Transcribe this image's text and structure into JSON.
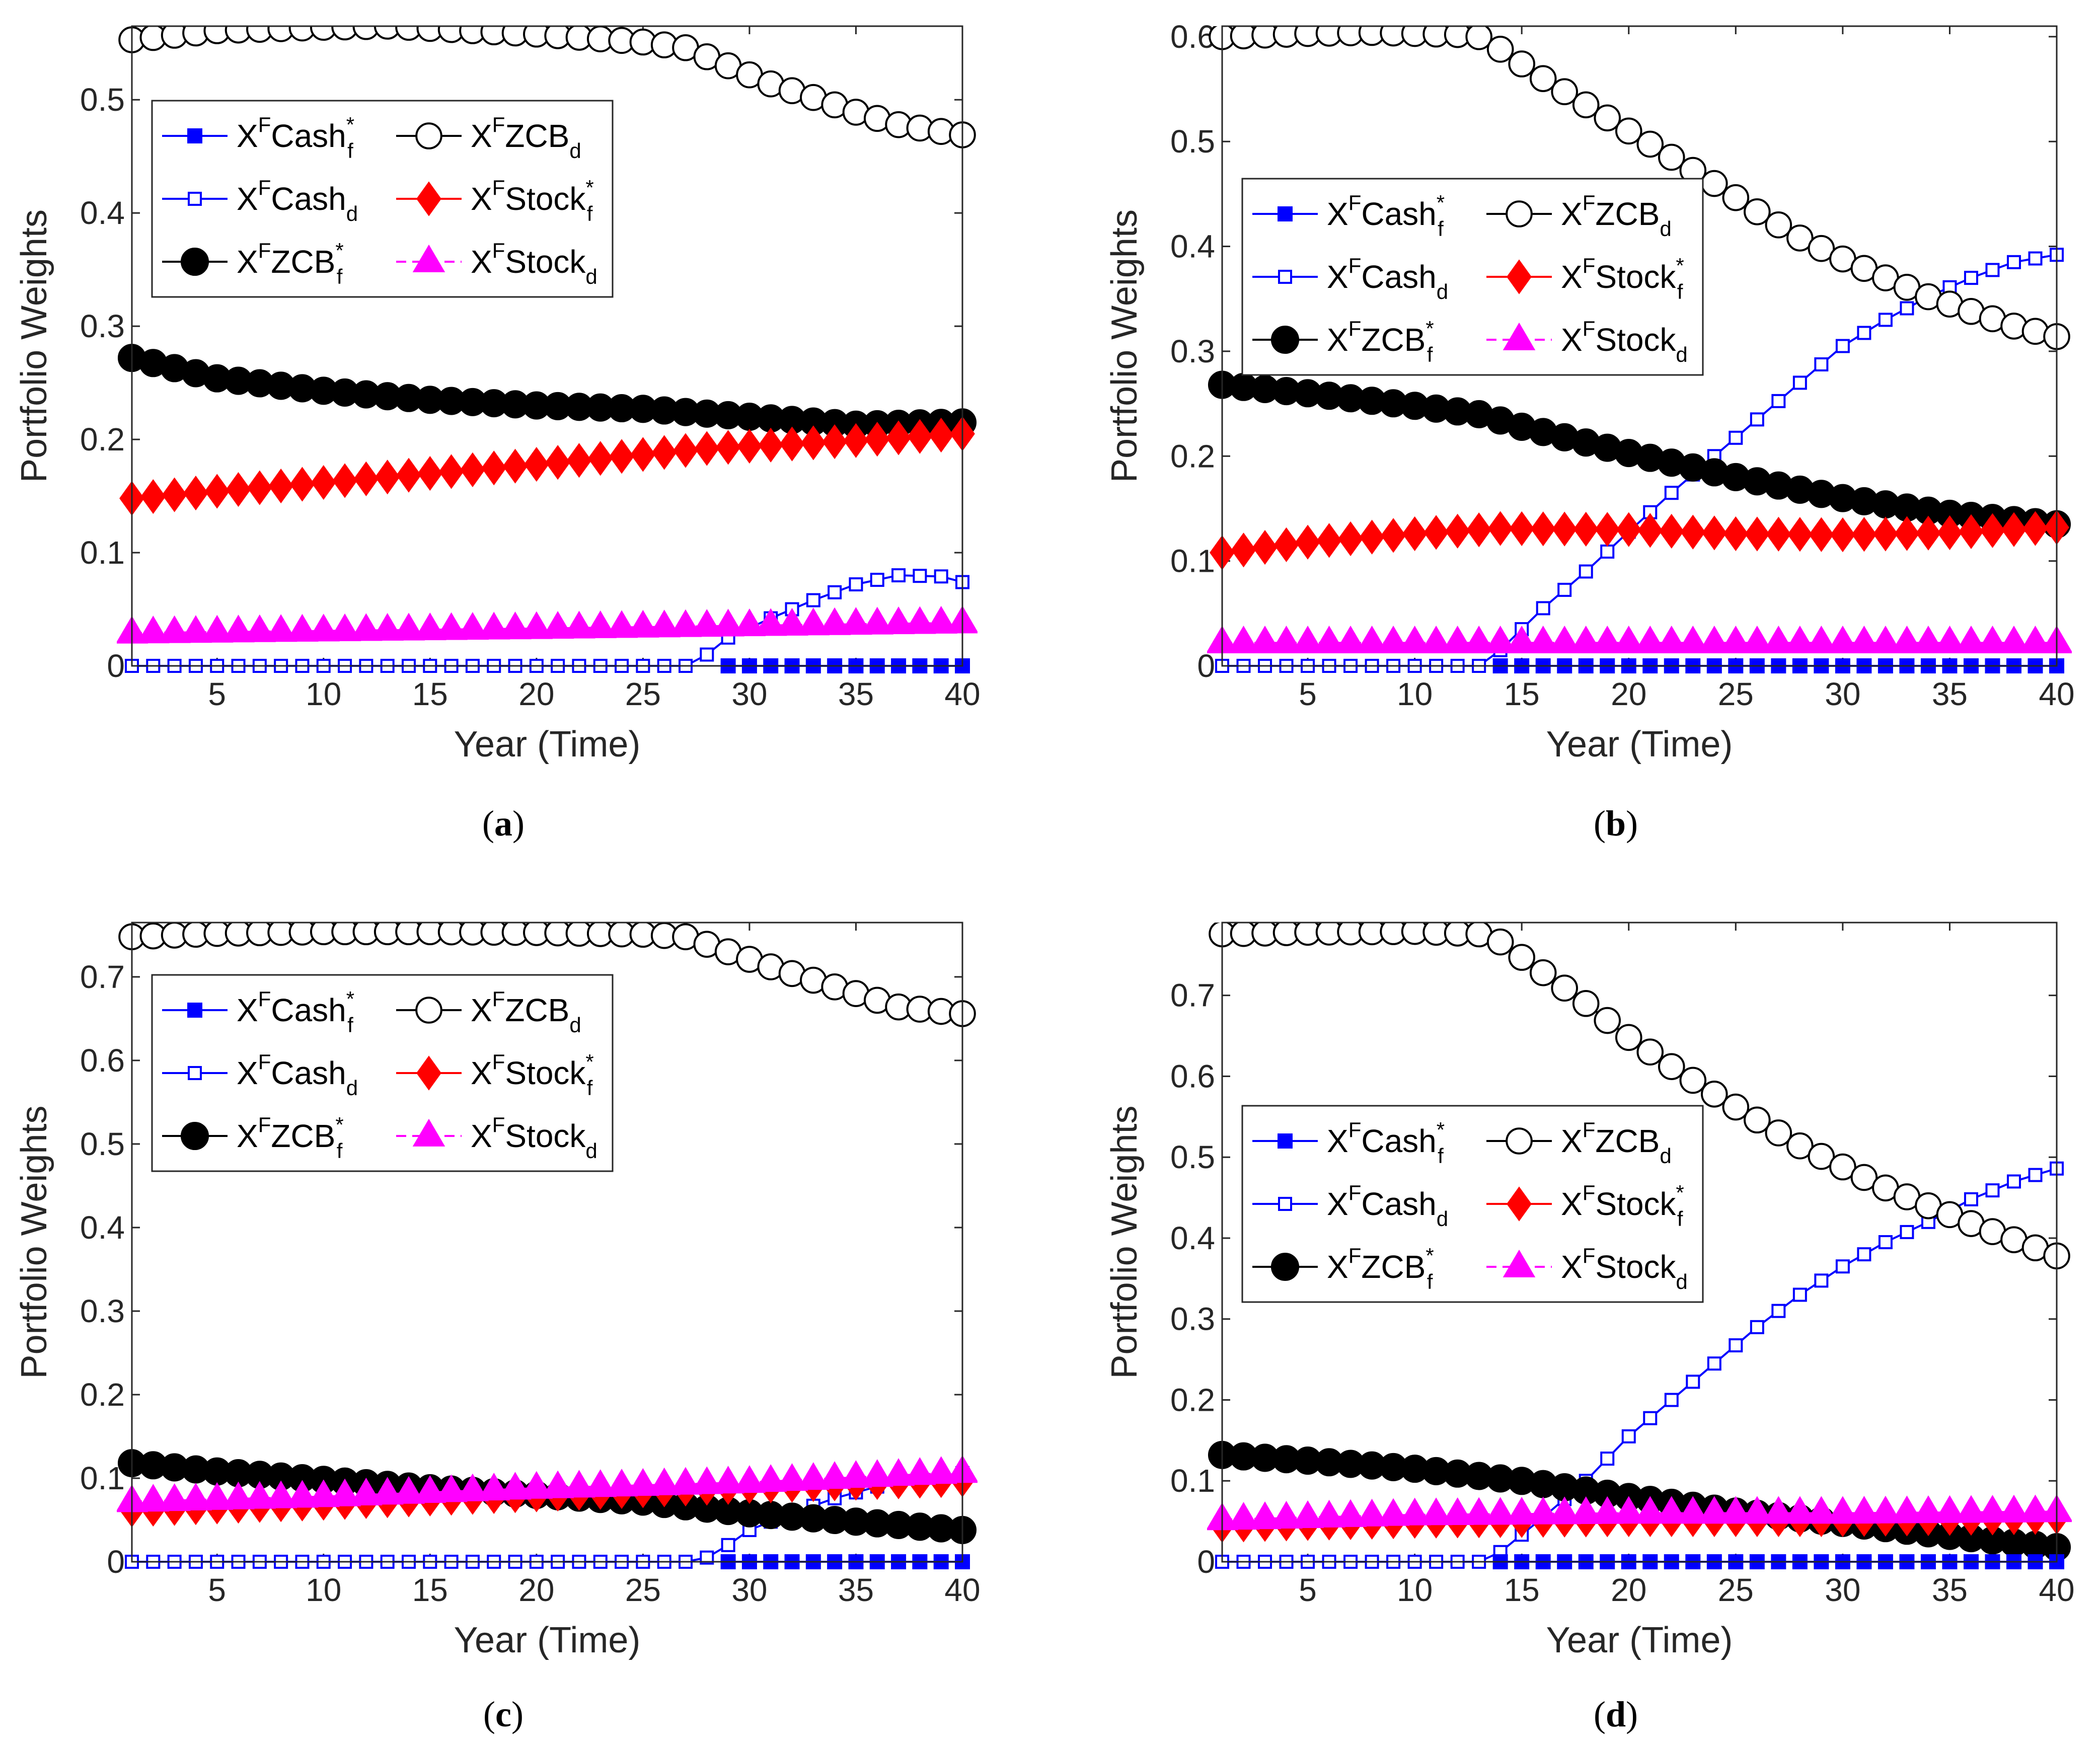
{
  "legend": {
    "entries": [
      {
        "key": "cash_f",
        "base": "X",
        "sup": "F",
        "name": "Cash",
        "sub": "f",
        "star": true,
        "color": "#0000ff",
        "marker": "square-filled",
        "dash": false
      },
      {
        "key": "zcb_d",
        "base": "X",
        "sup": "F",
        "name": "ZCB",
        "sub": "d",
        "star": false,
        "color": "#000000",
        "marker": "circle-open",
        "dash": false
      },
      {
        "key": "cash_d",
        "base": "X",
        "sup": "F",
        "name": "Cash",
        "sub": "d",
        "star": false,
        "color": "#0000ff",
        "marker": "square-open",
        "dash": false
      },
      {
        "key": "stock_f",
        "base": "X",
        "sup": "F",
        "name": "Stock",
        "sub": "f",
        "star": true,
        "color": "#ff0000",
        "marker": "diamond-filled",
        "dash": false
      },
      {
        "key": "zcb_f",
        "base": "X",
        "sup": "F",
        "name": "ZCB",
        "sub": "f",
        "star": true,
        "color": "#000000",
        "marker": "circle-filled",
        "dash": false
      },
      {
        "key": "stock_d",
        "base": "X",
        "sup": "F",
        "name": "Stock",
        "sub": "d",
        "star": false,
        "color": "#ff00ff",
        "marker": "triangle-filled",
        "dash": true
      }
    ]
  },
  "chart_data": [
    {
      "type": "line",
      "panel": "a",
      "caption_open": "(",
      "caption_letter": "a",
      "caption_close": ")",
      "xlabel": "Year (Time)",
      "ylabel": "Portfolio Weights",
      "xlim": [
        1,
        40
      ],
      "ylim": [
        0,
        0.565
      ],
      "xticks": [
        5,
        10,
        15,
        20,
        25,
        30,
        35,
        40
      ],
      "xtick_labels": [
        "5",
        "10",
        "15",
        "20",
        "25",
        "30",
        "35",
        "40"
      ],
      "yticks": [
        0,
        0.1,
        0.2,
        0.3,
        0.4,
        0.5
      ],
      "ytick_labels": [
        "0",
        "0.1",
        "0.2",
        "0.3",
        "0.4",
        "0.5"
      ],
      "legend_position": "upper-left",
      "series": {
        "zcb_d": {
          "anchors": [
            [
              1,
              0.553
            ],
            [
              5,
              0.561
            ],
            [
              10,
              0.564
            ],
            [
              13,
              0.565
            ],
            [
              20,
              0.558
            ],
            [
              25,
              0.551
            ],
            [
              27,
              0.546
            ],
            [
              29,
              0.53
            ],
            [
              31,
              0.514
            ],
            [
              33,
              0.502
            ],
            [
              35,
              0.489
            ],
            [
              37,
              0.478
            ],
            [
              40,
              0.469
            ]
          ]
        },
        "zcb_f": {
          "anchors": [
            [
              1,
              0.272
            ],
            [
              5,
              0.254
            ],
            [
              10,
              0.243
            ],
            [
              15,
              0.235
            ],
            [
              20,
              0.23
            ],
            [
              25,
              0.227
            ],
            [
              30,
              0.22
            ],
            [
              35,
              0.213
            ],
            [
              40,
              0.215
            ]
          ]
        },
        "stock_f": {
          "anchors": [
            [
              1,
              0.148
            ],
            [
              10,
              0.162
            ],
            [
              20,
              0.178
            ],
            [
              28,
              0.192
            ],
            [
              35,
              0.199
            ],
            [
              40,
              0.205
            ]
          ]
        },
        "stock_d": {
          "anchors": [
            [
              1,
              0.029
            ],
            [
              20,
              0.033
            ],
            [
              40,
              0.038
            ]
          ]
        },
        "cash_d": {
          "anchors": [
            [
              1,
              0
            ],
            [
              27,
              0
            ],
            [
              28,
              0.01
            ],
            [
              29,
              0.025
            ],
            [
              31,
              0.042
            ],
            [
              33,
              0.058
            ],
            [
              35,
              0.072
            ],
            [
              37,
              0.08
            ],
            [
              39,
              0.079
            ],
            [
              40,
              0.074
            ]
          ]
        },
        "cash_f": {
          "anchors": [
            [
              1,
              0
            ],
            [
              40,
              0
            ]
          ],
          "start": 29
        }
      }
    },
    {
      "type": "line",
      "panel": "b",
      "caption_open": "(",
      "caption_letter": "b",
      "caption_close": ")",
      "xlabel": "Year (Time)",
      "ylabel": "Portfolio Weights",
      "xlim": [
        1,
        40
      ],
      "ylim": [
        0,
        0.61
      ],
      "xticks": [
        5,
        10,
        15,
        20,
        25,
        30,
        35,
        40
      ],
      "xtick_labels": [
        "5",
        "10",
        "15",
        "20",
        "25",
        "30",
        "35",
        "40"
      ],
      "yticks": [
        0,
        0.1,
        0.2,
        0.3,
        0.4,
        0.5,
        0.6
      ],
      "ytick_labels": [
        "0",
        "0.1",
        "0.2",
        "0.3",
        "0.4",
        "0.5",
        "0.6"
      ],
      "legend_position": "middle-left",
      "series": {
        "zcb_d": {
          "anchors": [
            [
              1,
              0.6
            ],
            [
              5,
              0.603
            ],
            [
              8,
              0.604
            ],
            [
              12,
              0.602
            ],
            [
              13,
              0.6
            ],
            [
              14,
              0.588
            ],
            [
              16,
              0.56
            ],
            [
              18,
              0.535
            ],
            [
              20,
              0.51
            ],
            [
              22,
              0.485
            ],
            [
              24,
              0.46
            ],
            [
              26,
              0.433
            ],
            [
              28,
              0.408
            ],
            [
              30,
              0.388
            ],
            [
              32,
              0.37
            ],
            [
              34,
              0.352
            ],
            [
              36,
              0.338
            ],
            [
              38,
              0.324
            ],
            [
              40,
              0.314
            ]
          ]
        },
        "zcb_f": {
          "anchors": [
            [
              1,
              0.268
            ],
            [
              5,
              0.26
            ],
            [
              10,
              0.248
            ],
            [
              13,
              0.24
            ],
            [
              15,
              0.228
            ],
            [
              20,
              0.203
            ],
            [
              25,
              0.18
            ],
            [
              30,
              0.16
            ],
            [
              35,
              0.145
            ],
            [
              40,
              0.135
            ]
          ]
        },
        "stock_f": {
          "anchors": [
            [
              1,
              0.108
            ],
            [
              5,
              0.118
            ],
            [
              10,
              0.126
            ],
            [
              14,
              0.131
            ],
            [
              20,
              0.13
            ],
            [
              25,
              0.126
            ],
            [
              30,
              0.125
            ],
            [
              35,
              0.127
            ],
            [
              40,
              0.132
            ]
          ]
        },
        "stock_d": {
          "anchors": [
            [
              1,
              0.022
            ],
            [
              40,
              0.022
            ]
          ]
        },
        "cash_d": {
          "anchors": [
            [
              1,
              0
            ],
            [
              13,
              0
            ],
            [
              14,
              0.015
            ],
            [
              16,
              0.055
            ],
            [
              18,
              0.09
            ],
            [
              20,
              0.128
            ],
            [
              22,
              0.165
            ],
            [
              24,
              0.2
            ],
            [
              26,
              0.235
            ],
            [
              28,
              0.27
            ],
            [
              30,
              0.305
            ],
            [
              32,
              0.33
            ],
            [
              34,
              0.352
            ],
            [
              36,
              0.37
            ],
            [
              38,
              0.385
            ],
            [
              40,
              0.392
            ]
          ]
        },
        "cash_f": {
          "anchors": [
            [
              1,
              0
            ],
            [
              40,
              0
            ]
          ],
          "start": 14
        }
      }
    },
    {
      "type": "line",
      "panel": "c",
      "caption_open": "(",
      "caption_letter": "c",
      "caption_close": ")",
      "xlabel": "Year (Time)",
      "ylabel": "Portfolio Weights",
      "xlim": [
        1,
        40
      ],
      "ylim": [
        0,
        0.765
      ],
      "xticks": [
        5,
        10,
        15,
        20,
        25,
        30,
        35,
        40
      ],
      "xtick_labels": [
        "5",
        "10",
        "15",
        "20",
        "25",
        "30",
        "35",
        "40"
      ],
      "yticks": [
        0,
        0.1,
        0.2,
        0.3,
        0.4,
        0.5,
        0.6,
        0.7
      ],
      "ytick_labels": [
        "0",
        "0.1",
        "0.2",
        "0.3",
        "0.4",
        "0.5",
        "0.6",
        "0.7"
      ],
      "legend_position": "upper-left",
      "series": {
        "zcb_d": {
          "anchors": [
            [
              1,
              0.748
            ],
            [
              5,
              0.752
            ],
            [
              10,
              0.754
            ],
            [
              15,
              0.754
            ],
            [
              20,
              0.753
            ],
            [
              25,
              0.751
            ],
            [
              27,
              0.748
            ],
            [
              29,
              0.73
            ],
            [
              31,
              0.712
            ],
            [
              33,
              0.696
            ],
            [
              35,
              0.68
            ],
            [
              37,
              0.664
            ],
            [
              40,
              0.656
            ]
          ]
        },
        "zcb_f": {
          "anchors": [
            [
              1,
              0.118
            ],
            [
              5,
              0.108
            ],
            [
              10,
              0.098
            ],
            [
              15,
              0.088
            ],
            [
              20,
              0.08
            ],
            [
              25,
              0.072
            ],
            [
              30,
              0.058
            ],
            [
              35,
              0.048
            ],
            [
              40,
              0.038
            ]
          ]
        },
        "stock_f": {
          "anchors": [
            [
              1,
              0.062
            ],
            [
              10,
              0.07
            ],
            [
              20,
              0.08
            ],
            [
              30,
              0.09
            ],
            [
              40,
              0.098
            ]
          ]
        },
        "stock_d": {
          "anchors": [
            [
              1,
              0.072
            ],
            [
              10,
              0.078
            ],
            [
              20,
              0.088
            ],
            [
              30,
              0.095
            ],
            [
              40,
              0.107
            ]
          ]
        },
        "cash_d": {
          "anchors": [
            [
              1,
              0
            ],
            [
              27,
              0
            ],
            [
              28,
              0.005
            ],
            [
              29,
              0.02
            ],
            [
              30,
              0.038
            ],
            [
              32,
              0.058
            ],
            [
              34,
              0.076
            ],
            [
              36,
              0.09
            ],
            [
              38,
              0.1
            ],
            [
              40,
              0.106
            ]
          ]
        },
        "cash_f": {
          "anchors": [
            [
              1,
              0
            ],
            [
              40,
              0
            ]
          ],
          "start": 29
        }
      }
    },
    {
      "type": "line",
      "panel": "d",
      "caption_open": "(",
      "caption_letter": "d",
      "caption_close": ")",
      "xlabel": "Year (Time)",
      "ylabel": "Portfolio Weights",
      "xlim": [
        1,
        40
      ],
      "ylim": [
        0,
        0.79
      ],
      "xticks": [
        5,
        10,
        15,
        20,
        25,
        30,
        35,
        40
      ],
      "xtick_labels": [
        "5",
        "10",
        "15",
        "20",
        "25",
        "30",
        "35",
        "40"
      ],
      "yticks": [
        0,
        0.1,
        0.2,
        0.3,
        0.4,
        0.5,
        0.6,
        0.7
      ],
      "ytick_labels": [
        "0",
        "0.1",
        "0.2",
        "0.3",
        "0.4",
        "0.5",
        "0.6",
        "0.7"
      ],
      "legend_position": "middle-left",
      "series": {
        "zcb_d": {
          "anchors": [
            [
              1,
              0.776
            ],
            [
              5,
              0.778
            ],
            [
              10,
              0.779
            ],
            [
              13,
              0.776
            ],
            [
              14,
              0.766
            ],
            [
              16,
              0.728
            ],
            [
              18,
              0.69
            ],
            [
              20,
              0.648
            ],
            [
              22,
              0.612
            ],
            [
              24,
              0.578
            ],
            [
              26,
              0.546
            ],
            [
              28,
              0.514
            ],
            [
              30,
              0.488
            ],
            [
              32,
              0.462
            ],
            [
              34,
              0.44
            ],
            [
              36,
              0.418
            ],
            [
              38,
              0.398
            ],
            [
              40,
              0.378
            ]
          ]
        },
        "zcb_f": {
          "anchors": [
            [
              1,
              0.132
            ],
            [
              5,
              0.125
            ],
            [
              10,
              0.115
            ],
            [
              15,
              0.1
            ],
            [
              20,
              0.08
            ],
            [
              25,
              0.062
            ],
            [
              30,
              0.048
            ],
            [
              35,
              0.032
            ],
            [
              40,
              0.018
            ]
          ]
        },
        "stock_f": {
          "anchors": [
            [
              1,
              0.045
            ],
            [
              10,
              0.05
            ],
            [
              20,
              0.052
            ],
            [
              30,
              0.052
            ],
            [
              40,
              0.055
            ]
          ]
        },
        "stock_d": {
          "anchors": [
            [
              1,
              0.052
            ],
            [
              10,
              0.058
            ],
            [
              20,
              0.06
            ],
            [
              30,
              0.06
            ],
            [
              40,
              0.062
            ]
          ]
        },
        "cash_d": {
          "anchors": [
            [
              1,
              0
            ],
            [
              13,
              0
            ],
            [
              14,
              0.012
            ],
            [
              16,
              0.055
            ],
            [
              18,
              0.1
            ],
            [
              20,
              0.155
            ],
            [
              22,
              0.2
            ],
            [
              24,
              0.245
            ],
            [
              26,
              0.29
            ],
            [
              28,
              0.33
            ],
            [
              30,
              0.365
            ],
            [
              32,
              0.395
            ],
            [
              34,
              0.42
            ],
            [
              36,
              0.448
            ],
            [
              38,
              0.47
            ],
            [
              40,
              0.486
            ]
          ]
        },
        "cash_f": {
          "anchors": [
            [
              1,
              0
            ],
            [
              40,
              0
            ]
          ],
          "start": 14
        }
      }
    }
  ]
}
